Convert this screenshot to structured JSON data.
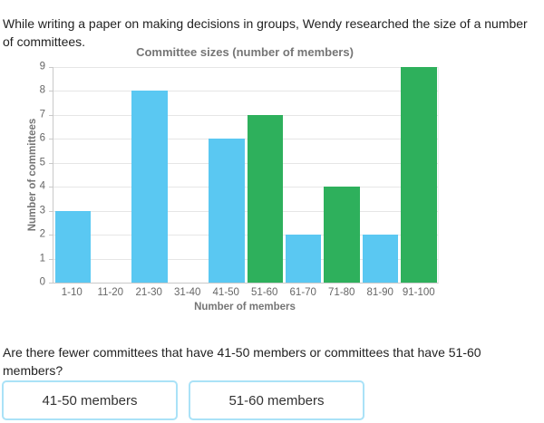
{
  "intro": {
    "text": "While writing a paper on making decisions in groups, Wendy researched the size of a number of committees."
  },
  "chart_data": {
    "type": "bar",
    "title": "Committee sizes (number of members)",
    "xlabel": "Number of members",
    "ylabel": "Number of committees",
    "categories": [
      "1-10",
      "11-20",
      "21-30",
      "31-40",
      "41-50",
      "51-60",
      "61-70",
      "71-80",
      "81-90",
      "91-100"
    ],
    "values": [
      3,
      0,
      8,
      0,
      6,
      7,
      2,
      4,
      2,
      9
    ],
    "bar_colors": [
      "#5ac8f2",
      "#5ac8f2",
      "#5ac8f2",
      "#5ac8f2",
      "#5ac8f2",
      "#2eb05c",
      "#5ac8f2",
      "#2eb05c",
      "#5ac8f2",
      "#2eb05c"
    ],
    "ylim": [
      0,
      9
    ],
    "ytick_step": 1,
    "grid": true,
    "legend": false
  },
  "question": {
    "text": "Are there fewer committees that have 41-50 members or committees that have 51-60 members?",
    "options": [
      {
        "label": "41-50 members"
      },
      {
        "label": "51-60 members"
      }
    ]
  },
  "colors": {
    "bar_blue": "#5ac8f2",
    "bar_green": "#2eb05c",
    "grid": "#e6e6e6",
    "axis": "#c9c9c9",
    "muted_text": "#757575",
    "body_text": "#222222",
    "button_border": "#aae2f7"
  }
}
